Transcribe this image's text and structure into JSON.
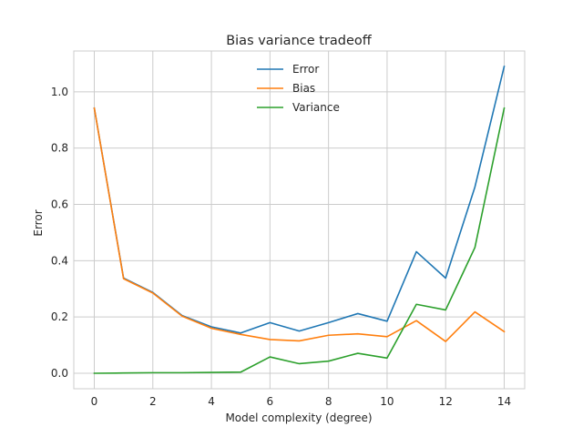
{
  "chart_data": {
    "type": "line",
    "title": "Bias variance tradeoff",
    "xlabel": "Model complexity (degree)",
    "ylabel": "Error",
    "xlim": [
      -0.7,
      14.7
    ],
    "ylim": [
      -0.055,
      1.145
    ],
    "xticks": [
      0,
      2,
      4,
      6,
      8,
      10,
      12,
      14
    ],
    "yticks": [
      0.0,
      0.2,
      0.4,
      0.6,
      0.8,
      1.0
    ],
    "xtick_labels": [
      "0",
      "2",
      "4",
      "6",
      "8",
      "10",
      "12",
      "14"
    ],
    "ytick_labels": [
      "0.0",
      "0.2",
      "0.4",
      "0.6",
      "0.8",
      "1.0"
    ],
    "grid": true,
    "legend_position": "top-center",
    "x": [
      0,
      1,
      2,
      3,
      4,
      5,
      6,
      7,
      8,
      9,
      10,
      11,
      12,
      13,
      14
    ],
    "series": [
      {
        "name": "Error",
        "color": "#1f77b4",
        "values": [
          0.942,
          0.338,
          0.287,
          0.205,
          0.165,
          0.143,
          0.18,
          0.15,
          0.18,
          0.212,
          0.185,
          0.432,
          0.338,
          0.662,
          1.09
        ]
      },
      {
        "name": "Bias",
        "color": "#ff7f0e",
        "values": [
          0.942,
          0.336,
          0.285,
          0.203,
          0.16,
          0.138,
          0.12,
          0.115,
          0.135,
          0.14,
          0.13,
          0.187,
          0.113,
          0.218,
          0.148
        ]
      },
      {
        "name": "Variance",
        "color": "#2ca02c",
        "values": [
          0.0,
          0.001,
          0.002,
          0.002,
          0.003,
          0.004,
          0.058,
          0.034,
          0.043,
          0.071,
          0.054,
          0.245,
          0.225,
          0.447,
          0.942
        ]
      }
    ]
  }
}
